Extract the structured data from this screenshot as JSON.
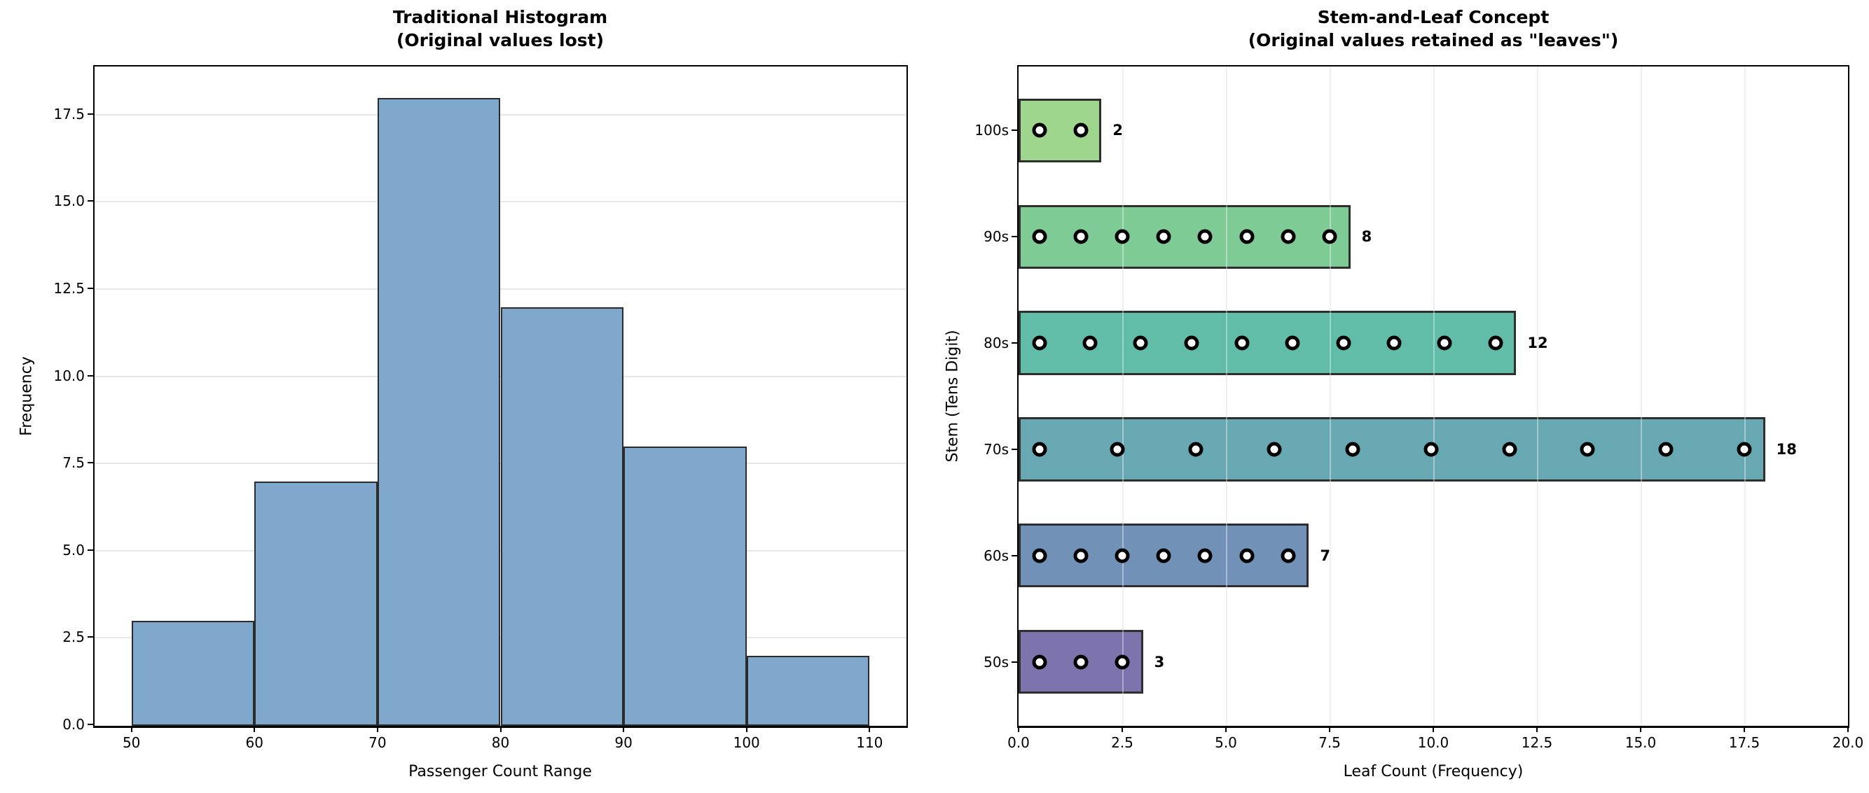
{
  "figure": {
    "background": "#ffffff"
  },
  "chart_data": [
    {
      "type": "bar",
      "variant": "histogram",
      "title": "Traditional Histogram",
      "subtitle": "(Original values lost)",
      "xlabel": "Passenger Count Range",
      "ylabel": "Frequency",
      "bin_edges": [
        50,
        60,
        70,
        80,
        90,
        100,
        110
      ],
      "values": [
        3,
        7,
        18,
        12,
        8,
        2
      ],
      "xlim": [
        47,
        113
      ],
      "ylim": [
        0,
        18.9
      ],
      "xticks": [
        {
          "v": 50,
          "label": "50"
        },
        {
          "v": 60,
          "label": "60"
        },
        {
          "v": 70,
          "label": "70"
        },
        {
          "v": 80,
          "label": "80"
        },
        {
          "v": 90,
          "label": "90"
        },
        {
          "v": 100,
          "label": "100"
        },
        {
          "v": 110,
          "label": "110"
        }
      ],
      "yticks": [
        {
          "v": 0,
          "label": "0.0"
        },
        {
          "v": 2.5,
          "label": "2.5"
        },
        {
          "v": 5,
          "label": "5.0"
        },
        {
          "v": 7.5,
          "label": "7.5"
        },
        {
          "v": 10,
          "label": "10.0"
        },
        {
          "v": 12.5,
          "label": "12.5"
        },
        {
          "v": 15,
          "label": "15.0"
        },
        {
          "v": 17.5,
          "label": "17.5"
        }
      ],
      "bar_color": "#7fa8cc",
      "bar_edge_color": "#2b2b2b",
      "grid": "horizontal",
      "grid_color": "#e7e7e7",
      "legend": "none"
    },
    {
      "type": "bar",
      "variant": "horizontal-dotted",
      "title": "Stem-and-Leaf Concept",
      "subtitle": "(Original values retained as \"leaves\")",
      "xlabel": "Leaf Count (Frequency)",
      "ylabel": "Stem (Tens Digit)",
      "rows_top_to_bottom": [
        {
          "stem": "100s",
          "count": 2,
          "count_label": "2",
          "color": "#9ed68d"
        },
        {
          "stem": "90s",
          "count": 8,
          "count_label": "8",
          "color": "#7ecb96"
        },
        {
          "stem": "80s",
          "count": 12,
          "count_label": "12",
          "color": "#62bda8"
        },
        {
          "stem": "70s",
          "count": 18,
          "count_label": "18",
          "color": "#68a8b2"
        },
        {
          "stem": "60s",
          "count": 7,
          "count_label": "7",
          "color": "#7191b7"
        },
        {
          "stem": "50s",
          "count": 3,
          "count_label": "3",
          "color": "#7d74ad"
        }
      ],
      "xlim": [
        0,
        20
      ],
      "xticks": [
        {
          "v": 0,
          "label": "0.0"
        },
        {
          "v": 2.5,
          "label": "2.5"
        },
        {
          "v": 5,
          "label": "5.0"
        },
        {
          "v": 7.5,
          "label": "7.5"
        },
        {
          "v": 10,
          "label": "10.0"
        },
        {
          "v": 12.5,
          "label": "12.5"
        },
        {
          "v": 15,
          "label": "15.0"
        },
        {
          "v": 17.5,
          "label": "17.5"
        },
        {
          "v": 20,
          "label": "20.0"
        }
      ],
      "max_dots_per_row": 10,
      "dot_fill": "#ffffff",
      "dot_edge_color": "#000000",
      "bar_edge_color": "#2e2e2e",
      "grid": "vertical",
      "grid_color": "#e7e7e7",
      "legend": "none"
    }
  ]
}
